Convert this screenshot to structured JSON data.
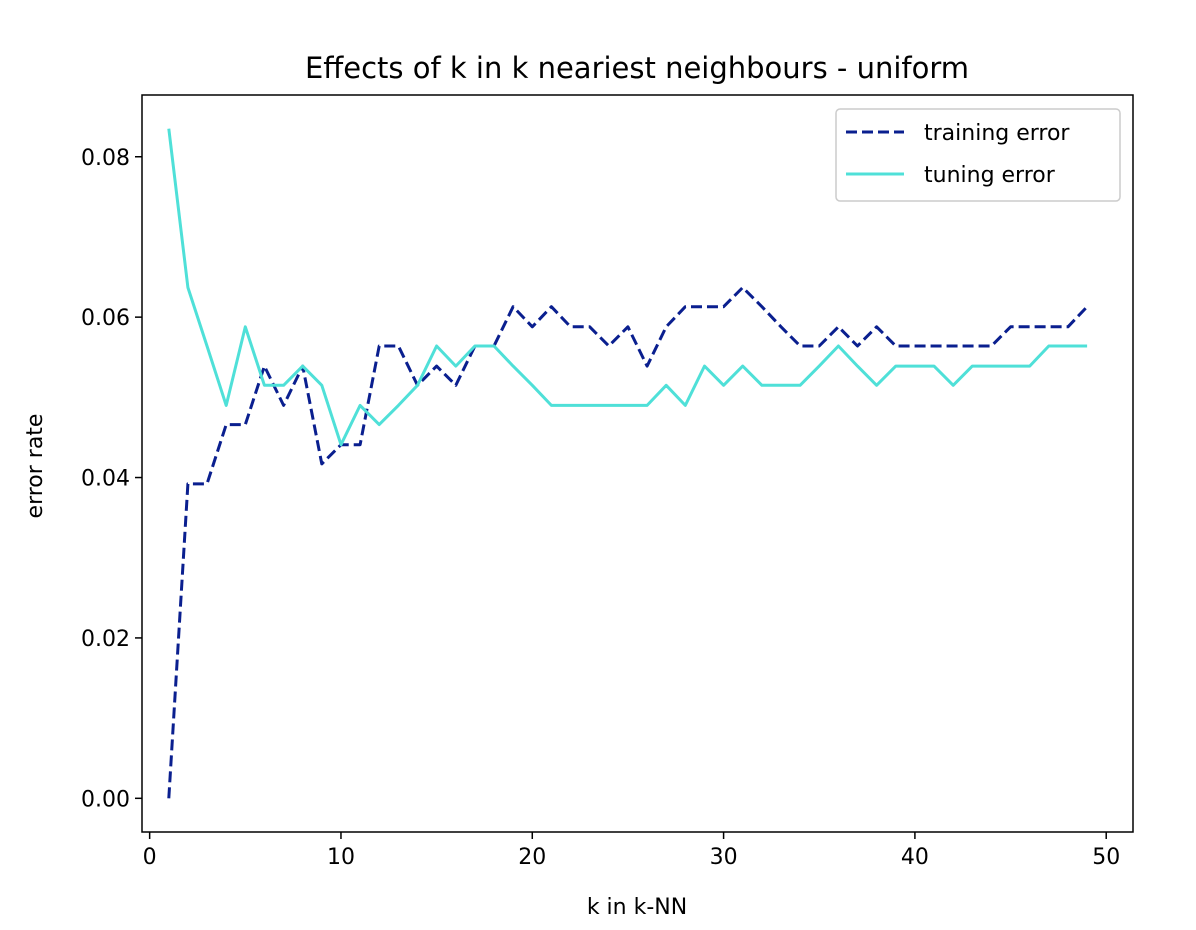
{
  "chart_data": {
    "type": "line",
    "title": "Effects of k in k neariest neighbours - uniform",
    "xlabel": "k in k-NN",
    "ylabel": "error rate",
    "xlim": [
      -0.4,
      51.4
    ],
    "ylim": [
      -0.0042,
      0.0877
    ],
    "xticks": [
      0,
      10,
      20,
      30,
      40,
      50
    ],
    "xtick_labels": [
      "0",
      "10",
      "20",
      "30",
      "40",
      "50"
    ],
    "yticks": [
      0.0,
      0.02,
      0.04,
      0.06,
      0.08
    ],
    "ytick_labels": [
      "0.00",
      "0.02",
      "0.04",
      "0.06",
      "0.08"
    ],
    "grid": false,
    "legend_position": "upper right",
    "x": [
      1,
      2,
      3,
      4,
      5,
      6,
      7,
      8,
      9,
      10,
      11,
      12,
      13,
      14,
      15,
      16,
      17,
      18,
      19,
      20,
      21,
      22,
      23,
      24,
      25,
      26,
      27,
      28,
      29,
      30,
      31,
      32,
      33,
      34,
      35,
      36,
      37,
      38,
      39,
      40,
      41,
      42,
      43,
      44,
      45,
      46,
      47,
      48,
      49
    ],
    "series": [
      {
        "name": "training error",
        "color": "#0a1f8f",
        "style": "dashed",
        "values": [
          0.0,
          0.0392,
          0.0392,
          0.0466,
          0.0466,
          0.0539,
          0.049,
          0.0539,
          0.0417,
          0.0441,
          0.0441,
          0.0564,
          0.0564,
          0.0515,
          0.0539,
          0.0515,
          0.0564,
          0.0564,
          0.0613,
          0.0588,
          0.0613,
          0.0588,
          0.0588,
          0.0564,
          0.0588,
          0.0539,
          0.0588,
          0.0613,
          0.0613,
          0.0613,
          0.0637,
          0.0613,
          0.0588,
          0.0564,
          0.0564,
          0.0588,
          0.0564,
          0.0588,
          0.0564,
          0.0564,
          0.0564,
          0.0564,
          0.0564,
          0.0564,
          0.0588,
          0.0588,
          0.0588,
          0.0588,
          0.0613
        ]
      },
      {
        "name": "tuning error",
        "color": "#4fe0d8",
        "style": "solid",
        "values": [
          0.0835,
          0.0637,
          0.0564,
          0.049,
          0.0588,
          0.0515,
          0.0515,
          0.0539,
          0.0515,
          0.0441,
          0.049,
          0.0466,
          0.049,
          0.0515,
          0.0564,
          0.0539,
          0.0564,
          0.0564,
          0.0539,
          0.0515,
          0.049,
          0.049,
          0.049,
          0.049,
          0.049,
          0.049,
          0.0515,
          0.049,
          0.0539,
          0.0515,
          0.0539,
          0.0515,
          0.0515,
          0.0515,
          0.0539,
          0.0564,
          0.0539,
          0.0515,
          0.0539,
          0.0539,
          0.0539,
          0.0515,
          0.0539,
          0.0539,
          0.0539,
          0.0539,
          0.0564,
          0.0564,
          0.0564
        ]
      }
    ]
  }
}
